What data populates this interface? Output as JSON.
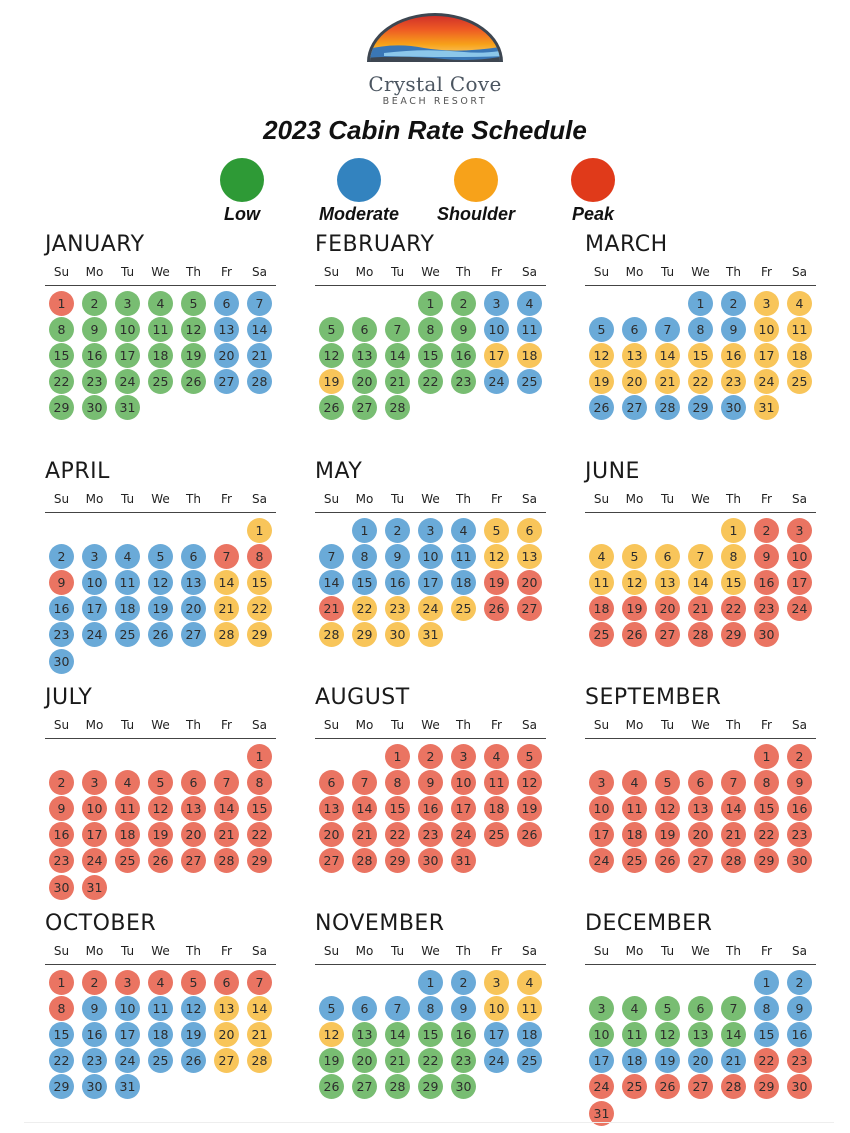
{
  "brand": {
    "name": "Crystal Cove",
    "subtitle": "BEACH RESORT"
  },
  "title": "2023 Cabin Rate Schedule",
  "legend": [
    {
      "key": "L",
      "label": "Low",
      "color": "#2e9a36"
    },
    {
      "key": "M",
      "label": "Moderate",
      "color": "#3383bf"
    },
    {
      "key": "S",
      "label": "Shoulder",
      "color": "#f7a21a"
    },
    {
      "key": "P",
      "label": "Peak",
      "color": "#e03a1a"
    }
  ],
  "day_colors": {
    "L": "#78bd72",
    "M": "#6aaad8",
    "S": "#f8c55a",
    "P": "#ea7462"
  },
  "weekday_labels": [
    "Su",
    "Mo",
    "Tu",
    "We",
    "Th",
    "Fr",
    "Sa"
  ],
  "months": [
    {
      "name": "JANUARY",
      "start_weekday": 0,
      "days": 31,
      "rates": "PLLLLMMLLLLLMMLLLLLMMLLLLLMMLLL"
    },
    {
      "name": "FEBRUARY",
      "start_weekday": 3,
      "days": 28,
      "rates": "LLMMLLLLLMMLLLLLSSSLLLLMMLLL"
    },
    {
      "name": "MARCH",
      "start_weekday": 3,
      "days": 31,
      "rates": "MMSSMMMMMSSSSSSSSSSSSSSSSMMMMMS"
    },
    {
      "name": "APRIL",
      "start_weekday": 6,
      "days": 30,
      "rates": "SMMMMMPPPMMMMSSMMMMMSSMMMMMSSM"
    },
    {
      "name": "MAY",
      "start_weekday": 1,
      "days": 31,
      "rates": "MMMMSSMMMMMSSMMMMMPPPSSSSPPSSSS"
    },
    {
      "name": "JUNE",
      "start_weekday": 4,
      "days": 30,
      "rates": "SPPSSSSSPPSSSSSPPPPPPPPPPPPPPP"
    },
    {
      "name": "JULY",
      "start_weekday": 6,
      "days": 31,
      "rates": "PPPPPPPPPPPPPPPPPPPPPPPPPPPPPPP"
    },
    {
      "name": "AUGUST",
      "start_weekday": 2,
      "days": 31,
      "rates": "PPPPPPPPPPPPPPPPPPPPPPPPPPPPPPP"
    },
    {
      "name": "SEPTEMBER",
      "start_weekday": 5,
      "days": 30,
      "rates": "PPPPPPPPPPPPPPPPPPPPPPPPPPPPPP"
    },
    {
      "name": "OCTOBER",
      "start_weekday": 0,
      "days": 31,
      "rates": "PPPPPPPPMMMMSSMMMMMSSMMMMMSSMMM"
    },
    {
      "name": "NOVEMBER",
      "start_weekday": 3,
      "days": 30,
      "rates": "MMSSMMMMMSSSLLLLMMLLLLLMMLLLLL"
    },
    {
      "name": "DECEMBER",
      "start_weekday": 5,
      "days": 31,
      "rates": "MMLLLLLMMLLLLLMMMMMMMPPPPPPPPPP"
    }
  ]
}
